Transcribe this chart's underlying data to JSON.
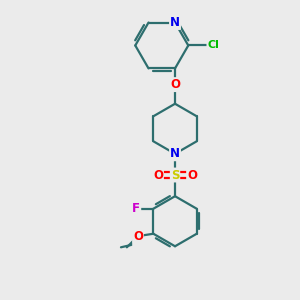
{
  "background_color": "#ebebeb",
  "bond_color": "#2d6e6e",
  "bond_width": 1.6,
  "atom_colors": {
    "N_pyridine": "#0000ee",
    "Cl": "#00bb00",
    "O": "#ff0000",
    "N_piperidine": "#0000ee",
    "S": "#cccc00",
    "F": "#cc00cc",
    "O_sulfonyl": "#ff0000",
    "C": "#2d6e6e"
  },
  "font_size_atom": 8.5,
  "fig_bg": "#ebebeb"
}
